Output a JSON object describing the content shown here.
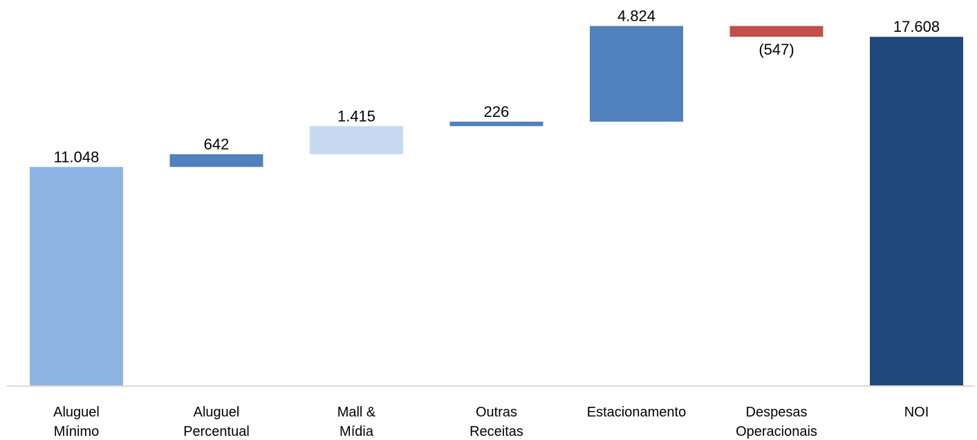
{
  "chart_data": {
    "type": "waterfall",
    "categories": [
      [
        "Aluguel",
        "Mínimo"
      ],
      [
        "Aluguel",
        "Percentual"
      ],
      [
        "Mall &",
        "Mídia"
      ],
      [
        "Outras",
        "Receitas"
      ],
      [
        "Estacionamento"
      ],
      [
        "Despesas",
        "Operacionais"
      ],
      [
        "NOI"
      ]
    ],
    "values": [
      11048,
      642,
      1415,
      226,
      4824,
      -547,
      17608
    ],
    "value_labels": [
      "11.048",
      "642",
      "1.415",
      "226",
      "4.824",
      "(547)",
      "17.608"
    ],
    "bar_kinds": [
      "start",
      "delta",
      "delta",
      "delta",
      "delta",
      "delta",
      "total"
    ],
    "colors": [
      "#8EB4E3",
      "#4F81BD",
      "#C6D9F1",
      "#4F81BD",
      "#4F81BD",
      "#C0504D",
      "#1F497D"
    ],
    "ylim": [
      0,
      18000
    ],
    "grid": false,
    "legend": "none"
  }
}
